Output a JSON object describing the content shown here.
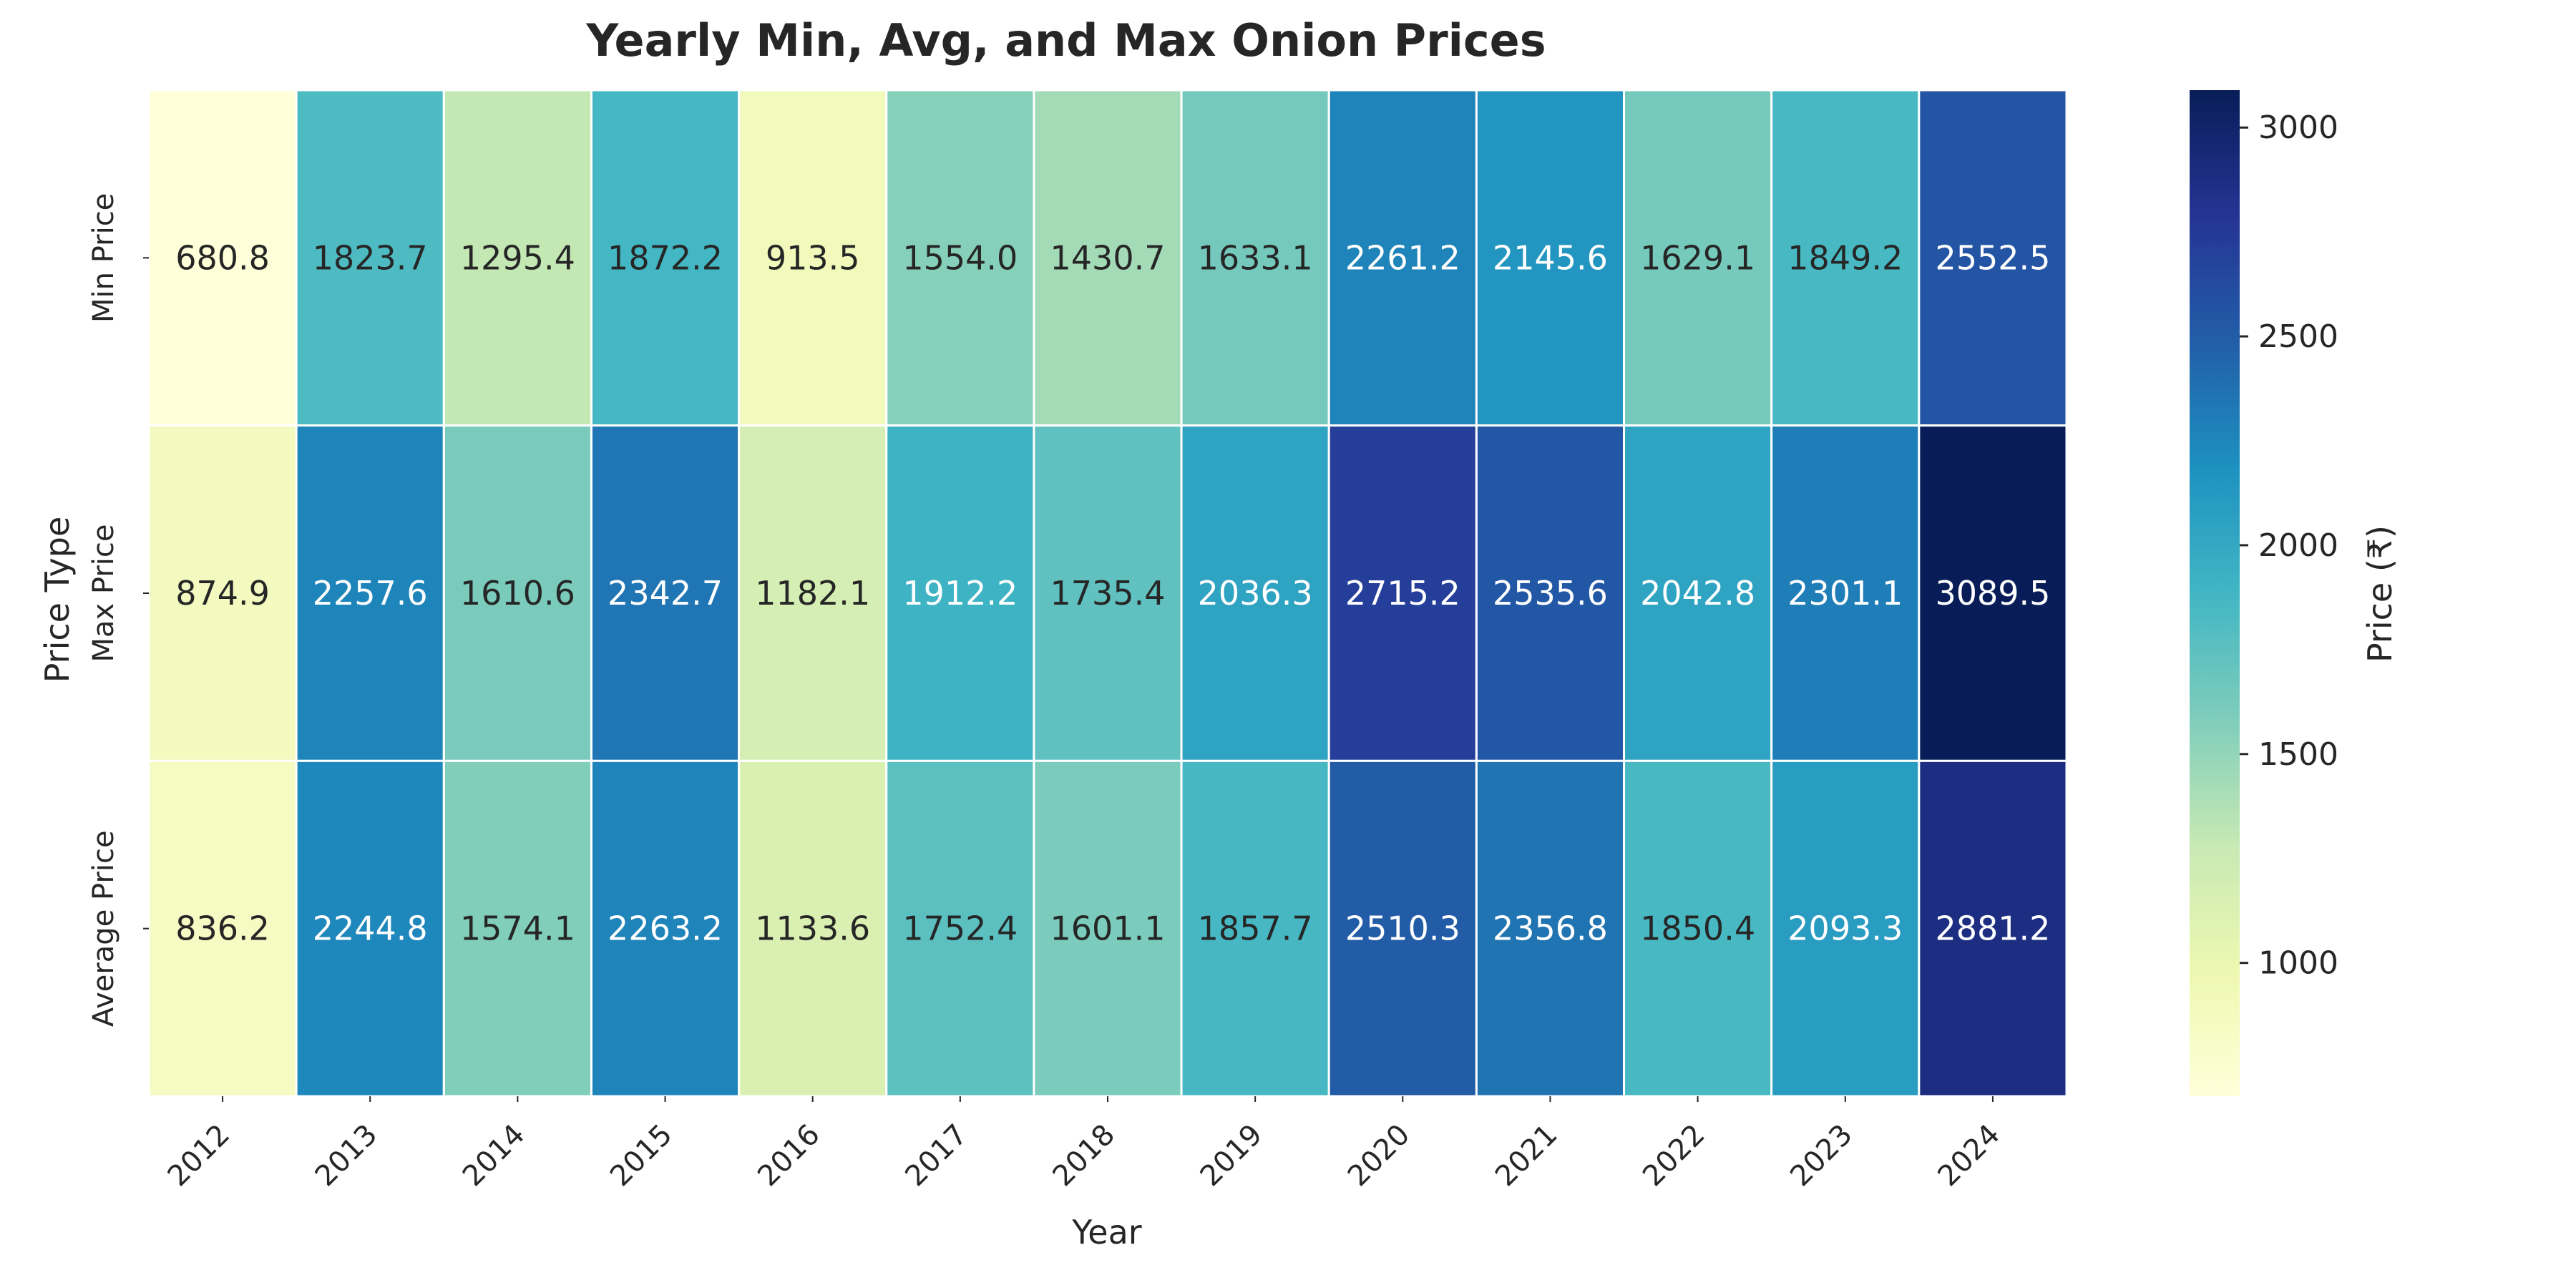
{
  "chart_data": {
    "type": "heatmap",
    "title": "Yearly Min, Avg, and Max Onion Prices",
    "xlabel": "Year",
    "ylabel": "Price Type",
    "colorbar_label": "Price (₹)",
    "colormap": "YlGnBu",
    "color_range": [
      680.8,
      3089.5
    ],
    "colorbar_ticks": [
      1000,
      1500,
      2000,
      2500,
      3000
    ],
    "x": [
      "2012",
      "2013",
      "2014",
      "2015",
      "2016",
      "2017",
      "2018",
      "2019",
      "2020",
      "2021",
      "2022",
      "2023",
      "2024"
    ],
    "y": [
      "Min Price",
      "Max Price",
      "Average Price"
    ],
    "values": [
      [
        680.8,
        1823.7,
        1295.4,
        1872.2,
        913.5,
        1554.0,
        1430.7,
        1633.1,
        2261.2,
        2145.6,
        1629.1,
        1849.2,
        2552.5
      ],
      [
        874.9,
        2257.6,
        1610.6,
        2342.7,
        1182.1,
        1912.2,
        1735.4,
        2036.3,
        2715.2,
        2535.6,
        2042.8,
        2301.1,
        3089.5
      ],
      [
        836.2,
        2244.8,
        1574.1,
        2263.2,
        1133.6,
        1752.4,
        1601.1,
        1857.7,
        2510.3,
        2356.8,
        1850.4,
        2093.3,
        2881.2
      ]
    ]
  }
}
